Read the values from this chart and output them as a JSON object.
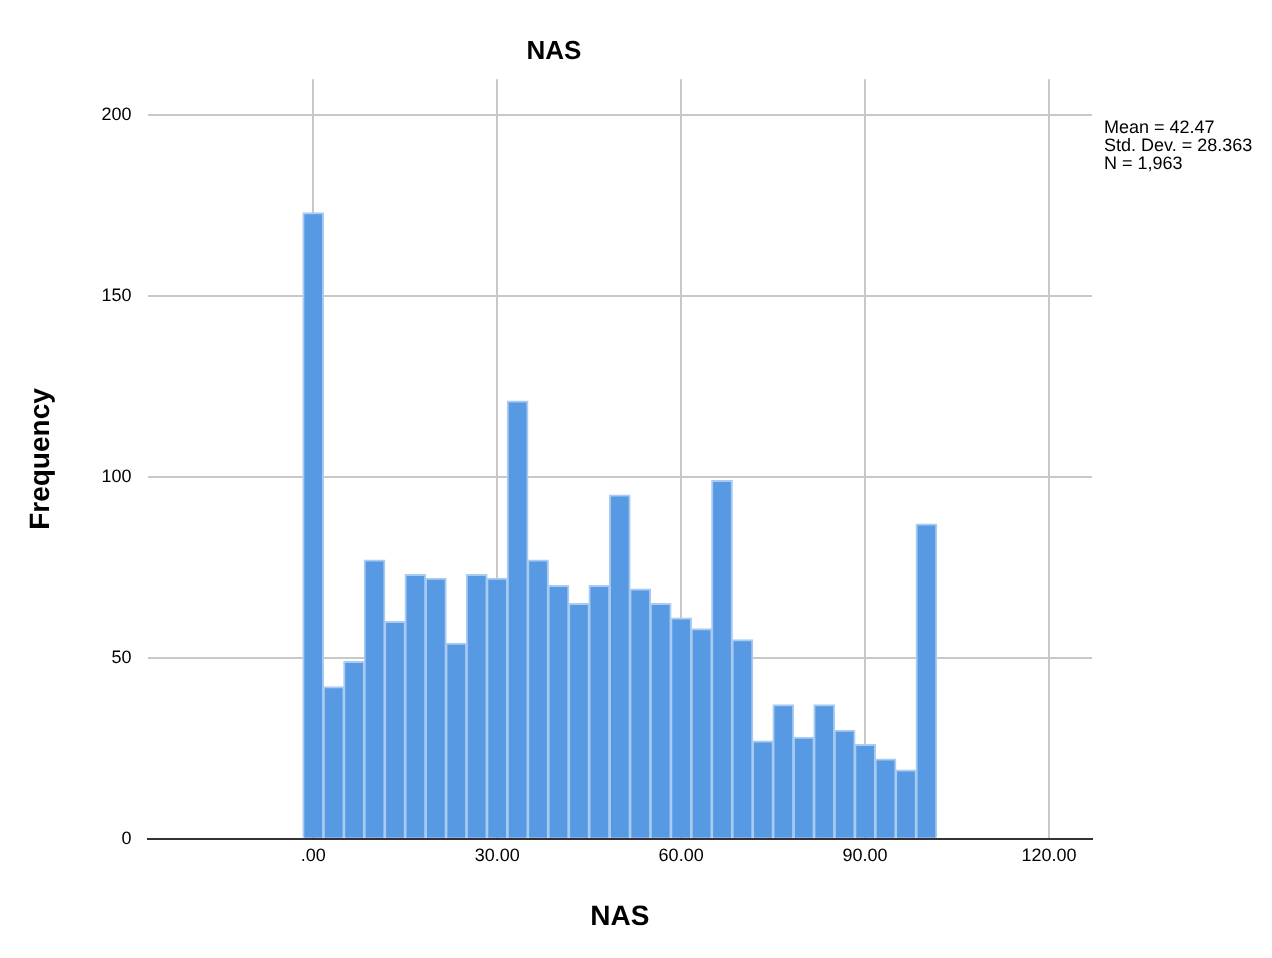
{
  "chart_data": {
    "type": "histogram",
    "title": "NAS",
    "xlabel": "NAS",
    "ylabel": "Frequency",
    "bins": [
      -1.67,
      1.67,
      5,
      8.33,
      11.67,
      15,
      18.33,
      21.67,
      25,
      28.33,
      31.67,
      35,
      38.33,
      41.67,
      45,
      48.33,
      51.67,
      55,
      58.33,
      61.67,
      65,
      68.33,
      71.67,
      75,
      78.33,
      81.67,
      85,
      88.33,
      91.67,
      95,
      98.33,
      101.67
    ],
    "values": [
      173,
      42,
      49,
      77,
      60,
      73,
      72,
      54,
      73,
      72,
      121,
      77,
      70,
      65,
      70,
      95,
      69,
      65,
      61,
      58,
      99,
      55,
      27,
      37,
      28,
      37,
      30,
      26,
      22,
      19,
      87
    ],
    "color": "#5799e3",
    "xlim": [
      -27,
      127
    ],
    "xticks": [
      {
        "value": 0,
        "label": ".00"
      },
      {
        "value": 30,
        "label": "30.00"
      },
      {
        "value": 60,
        "label": "60.00"
      },
      {
        "value": 90,
        "label": "90.00"
      },
      {
        "value": 120,
        "label": "120.00"
      }
    ],
    "ylim": [
      0,
      210
    ],
    "yticks": [
      0,
      50,
      100,
      150,
      200
    ],
    "grid": true,
    "legend": false,
    "annotations": [
      "Mean = 42.47",
      "Std. Dev. = 28.363",
      "N = 1,963"
    ]
  }
}
